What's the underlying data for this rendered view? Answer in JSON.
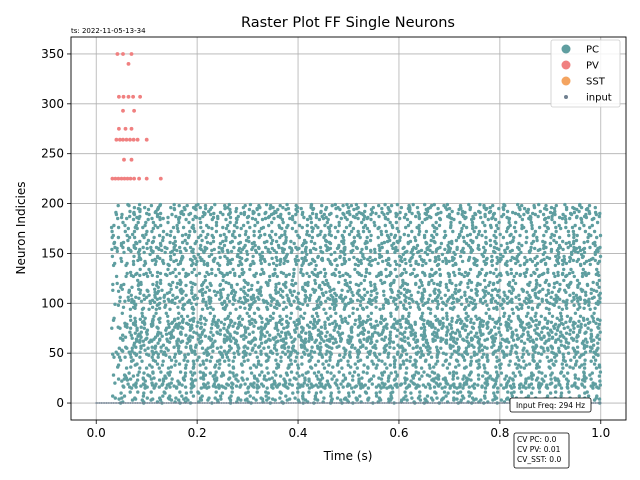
{
  "chart_data": {
    "type": "scatter",
    "title": "Raster Plot FF Single Neurons",
    "timestamp": "ts: 2022-11-05-13-34",
    "xlabel": "Time (s)",
    "ylabel": "Neuron Indicies",
    "xlim": [
      -0.05,
      1.05
    ],
    "ylim": [
      -17,
      367
    ],
    "xticks": [
      0.0,
      0.2,
      0.4,
      0.6,
      0.8,
      1.0
    ],
    "xtick_labels": [
      "0.0",
      "0.2",
      "0.4",
      "0.6",
      "0.8",
      "1.0"
    ],
    "yticks": [
      0,
      50,
      100,
      150,
      200,
      250,
      300,
      350
    ],
    "ytick_labels": [
      "0",
      "50",
      "100",
      "150",
      "200",
      "250",
      "300",
      "350"
    ],
    "grid": true,
    "legend_position": "top-right",
    "legend": [
      {
        "name": "PC",
        "color": "#5f9ea0"
      },
      {
        "name": "PV",
        "color": "#f08080"
      },
      {
        "name": "SST",
        "color": "#f4a460"
      },
      {
        "name": "input",
        "color": "#708090"
      }
    ],
    "series": [
      {
        "name": "PC",
        "color": "#5f9ea0",
        "neuron_range": [
          0,
          199
        ],
        "time_range": [
          0.03,
          1.0
        ],
        "description_note_omitted": true
      },
      {
        "name": "PV",
        "color": "#f08080",
        "points": [
          [
            0.042,
            350
          ],
          [
            0.053,
            350
          ],
          [
            0.07,
            350
          ],
          [
            0.064,
            340
          ],
          [
            0.045,
            307
          ],
          [
            0.054,
            307
          ],
          [
            0.064,
            307
          ],
          [
            0.073,
            307
          ],
          [
            0.087,
            307
          ],
          [
            0.053,
            293
          ],
          [
            0.075,
            293
          ],
          [
            0.045,
            275
          ],
          [
            0.058,
            275
          ],
          [
            0.07,
            275
          ],
          [
            0.04,
            264
          ],
          [
            0.047,
            264
          ],
          [
            0.053,
            264
          ],
          [
            0.06,
            264
          ],
          [
            0.067,
            264
          ],
          [
            0.074,
            264
          ],
          [
            0.082,
            264
          ],
          [
            0.1,
            264
          ],
          [
            0.055,
            244
          ],
          [
            0.07,
            244
          ],
          [
            0.032,
            225
          ],
          [
            0.038,
            225
          ],
          [
            0.044,
            225
          ],
          [
            0.05,
            225
          ],
          [
            0.056,
            225
          ],
          [
            0.062,
            225
          ],
          [
            0.068,
            225
          ],
          [
            0.075,
            225
          ],
          [
            0.085,
            225
          ],
          [
            0.1,
            225
          ],
          [
            0.128,
            225
          ]
        ]
      },
      {
        "name": "input",
        "color": "#708090",
        "neuron": 0,
        "time_range": [
          0.0,
          1.0
        ]
      }
    ],
    "annotations": {
      "input_freq": "Input Freq: 294 Hz",
      "cv_lines": [
        "CV PC: 0.0",
        "CV PV: 0.01",
        "CV_SST: 0.0"
      ]
    }
  }
}
